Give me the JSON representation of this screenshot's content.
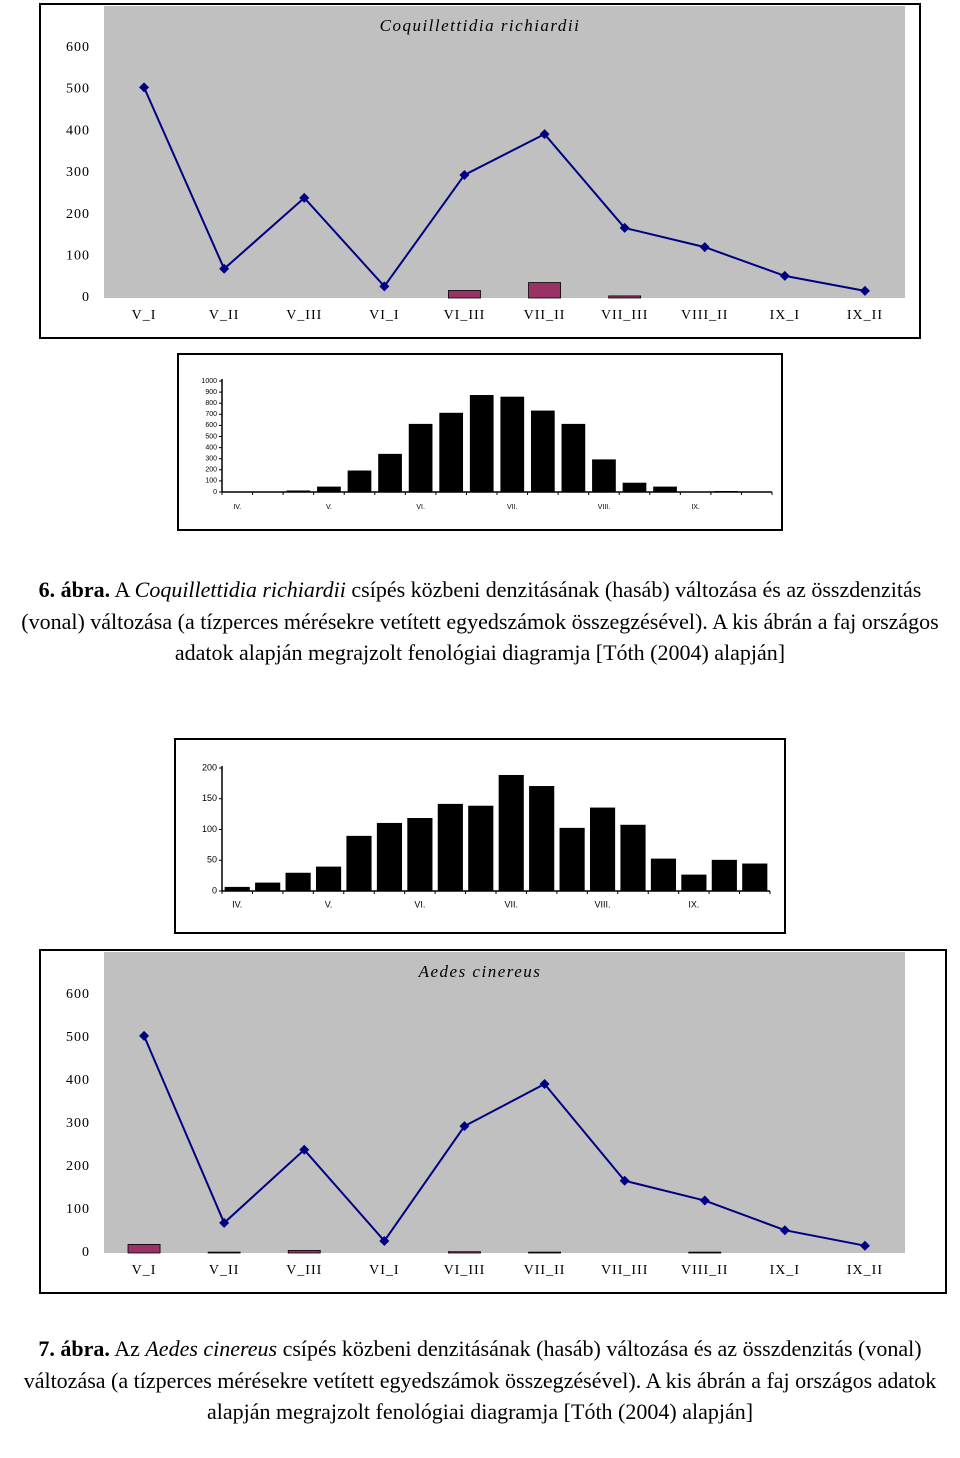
{
  "chart_data": [
    {
      "type": "combo",
      "title": "Coquillettidia richiardii",
      "categories": [
        "V_I",
        "V_II",
        "V_III",
        "VI_I",
        "VI_III",
        "VII_II",
        "VII_III",
        "VIII_II",
        "IX_I",
        "IX_II"
      ],
      "series": [
        {
          "type": "bar",
          "color": "#993366",
          "values": [
            0,
            0,
            0,
            0,
            18,
            37,
            5,
            0,
            0,
            0
          ]
        },
        {
          "type": "line",
          "color": "#000080",
          "values": [
            505,
            70,
            240,
            28,
            295,
            393,
            168,
            122,
            53,
            17
          ]
        }
      ],
      "ylim": [
        0,
        700
      ],
      "yticks": [
        0,
        100,
        200,
        300,
        400,
        500,
        600
      ],
      "background": "#c0c0c0"
    },
    {
      "type": "bar",
      "categories": [
        "IV.",
        null,
        null,
        "V.",
        null,
        null,
        "VI.",
        null,
        null,
        "VII.",
        null,
        null,
        "VIII.",
        null,
        null,
        "IX.",
        null,
        null
      ],
      "values": [
        0,
        0,
        10,
        45,
        190,
        340,
        610,
        710,
        870,
        855,
        730,
        610,
        290,
        80,
        45,
        0,
        5,
        0
      ],
      "color": "#000000",
      "ylim": [
        0,
        1000
      ],
      "yticks": [
        0,
        100,
        200,
        300,
        400,
        500,
        600,
        700,
        800,
        900,
        1000
      ],
      "background": "#ffffff"
    },
    {
      "type": "bar",
      "categories": [
        "IV.",
        null,
        null,
        "V.",
        null,
        null,
        "VI.",
        null,
        null,
        "VII.",
        null,
        null,
        "VIII.",
        null,
        null,
        "IX.",
        null,
        null
      ],
      "values": [
        6,
        13,
        29,
        39,
        89,
        110,
        118,
        141,
        138,
        188,
        170,
        102,
        135,
        107,
        52,
        26,
        50,
        44
      ],
      "color": "#000000",
      "ylim": [
        0,
        200
      ],
      "yticks": [
        0,
        50,
        100,
        150,
        200
      ],
      "background": "#ffffff"
    },
    {
      "type": "combo",
      "title": "Aedes cinereus",
      "categories": [
        "V_I",
        "V_II",
        "V_III",
        "VI_I",
        "VI_III",
        "VII_II",
        "VII_III",
        "VIII_II",
        "IX_I",
        "IX_II"
      ],
      "series": [
        {
          "type": "bar",
          "color": "#993366",
          "values": [
            20,
            2,
            6,
            0,
            3,
            2,
            0,
            2,
            0,
            0
          ]
        },
        {
          "type": "line",
          "color": "#000080",
          "values": [
            505,
            70,
            240,
            28,
            295,
            393,
            168,
            122,
            53,
            17
          ]
        }
      ],
      "ylim": [
        0,
        700
      ],
      "yticks": [
        0,
        100,
        200,
        300,
        400,
        500,
        600
      ],
      "background": "#c0c0c0"
    }
  ],
  "captions": [
    {
      "label": "6. ábra.",
      "before": "A",
      "species": "Coquillettidia richiardii",
      "after": "csípés közbeni denzitásának (hasáb) változása és az összdenzitás (vonal) változása (a tízperces mérésekre vetített egyedszámok összegzésével). A kis ábrán a faj országos adatok alapján megrajzolt fenológiai diagramja [Tóth (2004) alapján]"
    },
    {
      "label": "7. ábra.",
      "before": "Az",
      "species": "Aedes cinereus",
      "after": "csípés közbeni denzitásának (hasáb) változása és az összdenzitás (vonal) változása (a tízperces mérésekre vetített egyedszámok összegzésével). A kis ábrán a faj országos adatok alapján megrajzolt fenológiai diagramja [Tóth (2004) alapján]"
    }
  ]
}
